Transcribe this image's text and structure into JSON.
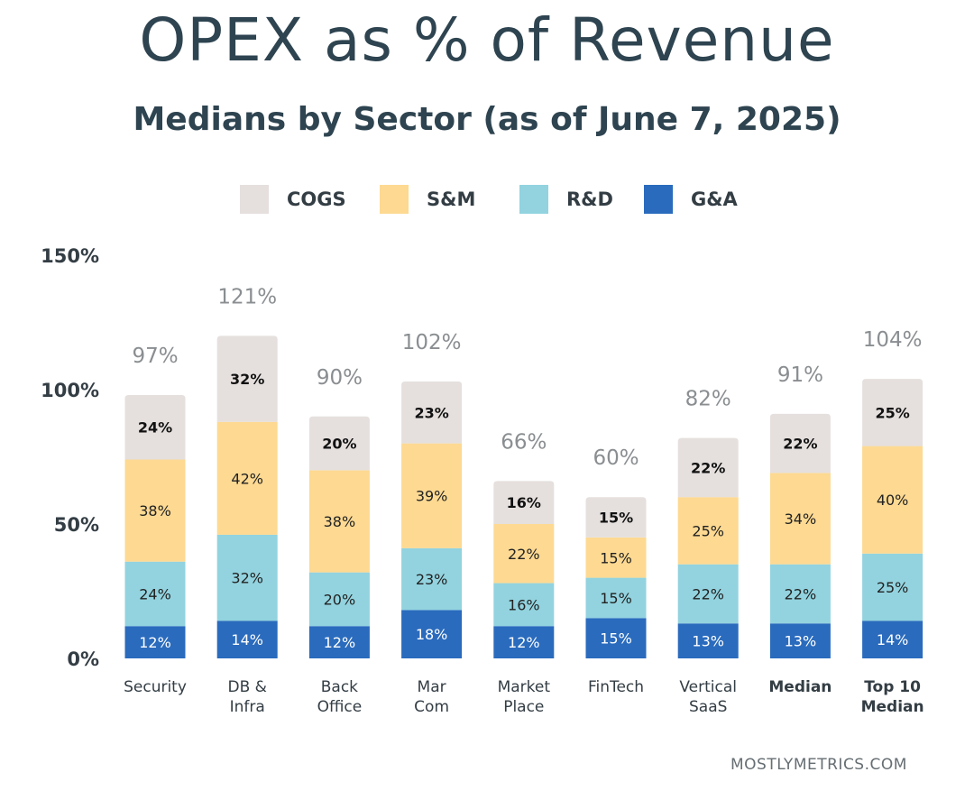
{
  "chart_data": {
    "type": "bar",
    "stacked": true,
    "title": "OPEX as % of Revenue",
    "subtitle": "Medians by Sector (as of June 7, 2025)",
    "categories": [
      [
        "Security"
      ],
      [
        "DB &",
        "Infra"
      ],
      [
        "Back",
        "Office"
      ],
      [
        "Mar",
        "Com"
      ],
      [
        "Market",
        "Place"
      ],
      [
        "FinTech"
      ],
      [
        "Vertical",
        "SaaS"
      ],
      [
        "Median"
      ],
      [
        "Top 10",
        "Median"
      ]
    ],
    "bold_categories": [
      7,
      8
    ],
    "series": [
      {
        "name": "G&A",
        "color": "#2a6bbd",
        "label_color": "#ffffff",
        "label_bold": false,
        "values": [
          12,
          14,
          12,
          18,
          12,
          15,
          13,
          13,
          14
        ]
      },
      {
        "name": "R&D",
        "color": "#92d3df",
        "label_color": "#222222",
        "label_bold": false,
        "values": [
          24,
          32,
          20,
          23,
          16,
          15,
          22,
          22,
          25
        ]
      },
      {
        "name": "S&M",
        "color": "#fdd992",
        "label_color": "#222222",
        "label_bold": false,
        "values": [
          38,
          42,
          38,
          39,
          22,
          15,
          25,
          34,
          40
        ]
      },
      {
        "name": "COGS",
        "color": "#e5e0de",
        "label_color": "#111111",
        "label_bold": true,
        "values": [
          24,
          32,
          20,
          23,
          16,
          15,
          22,
          22,
          25
        ]
      }
    ],
    "totals": [
      97,
      121,
      90,
      102,
      66,
      60,
      82,
      91,
      104
    ],
    "legend_order": [
      "COGS",
      "S&M",
      "R&D",
      "G&A"
    ],
    "legend_position": "top",
    "ylim": [
      0,
      150
    ],
    "yticks": [
      0,
      50,
      100,
      150
    ],
    "ytick_labels": [
      "0%",
      "50%",
      "100%",
      "150%"
    ],
    "grid": false,
    "xlabel": "",
    "ylabel": ""
  },
  "footer": "MOSTLYMETRICS.COM"
}
